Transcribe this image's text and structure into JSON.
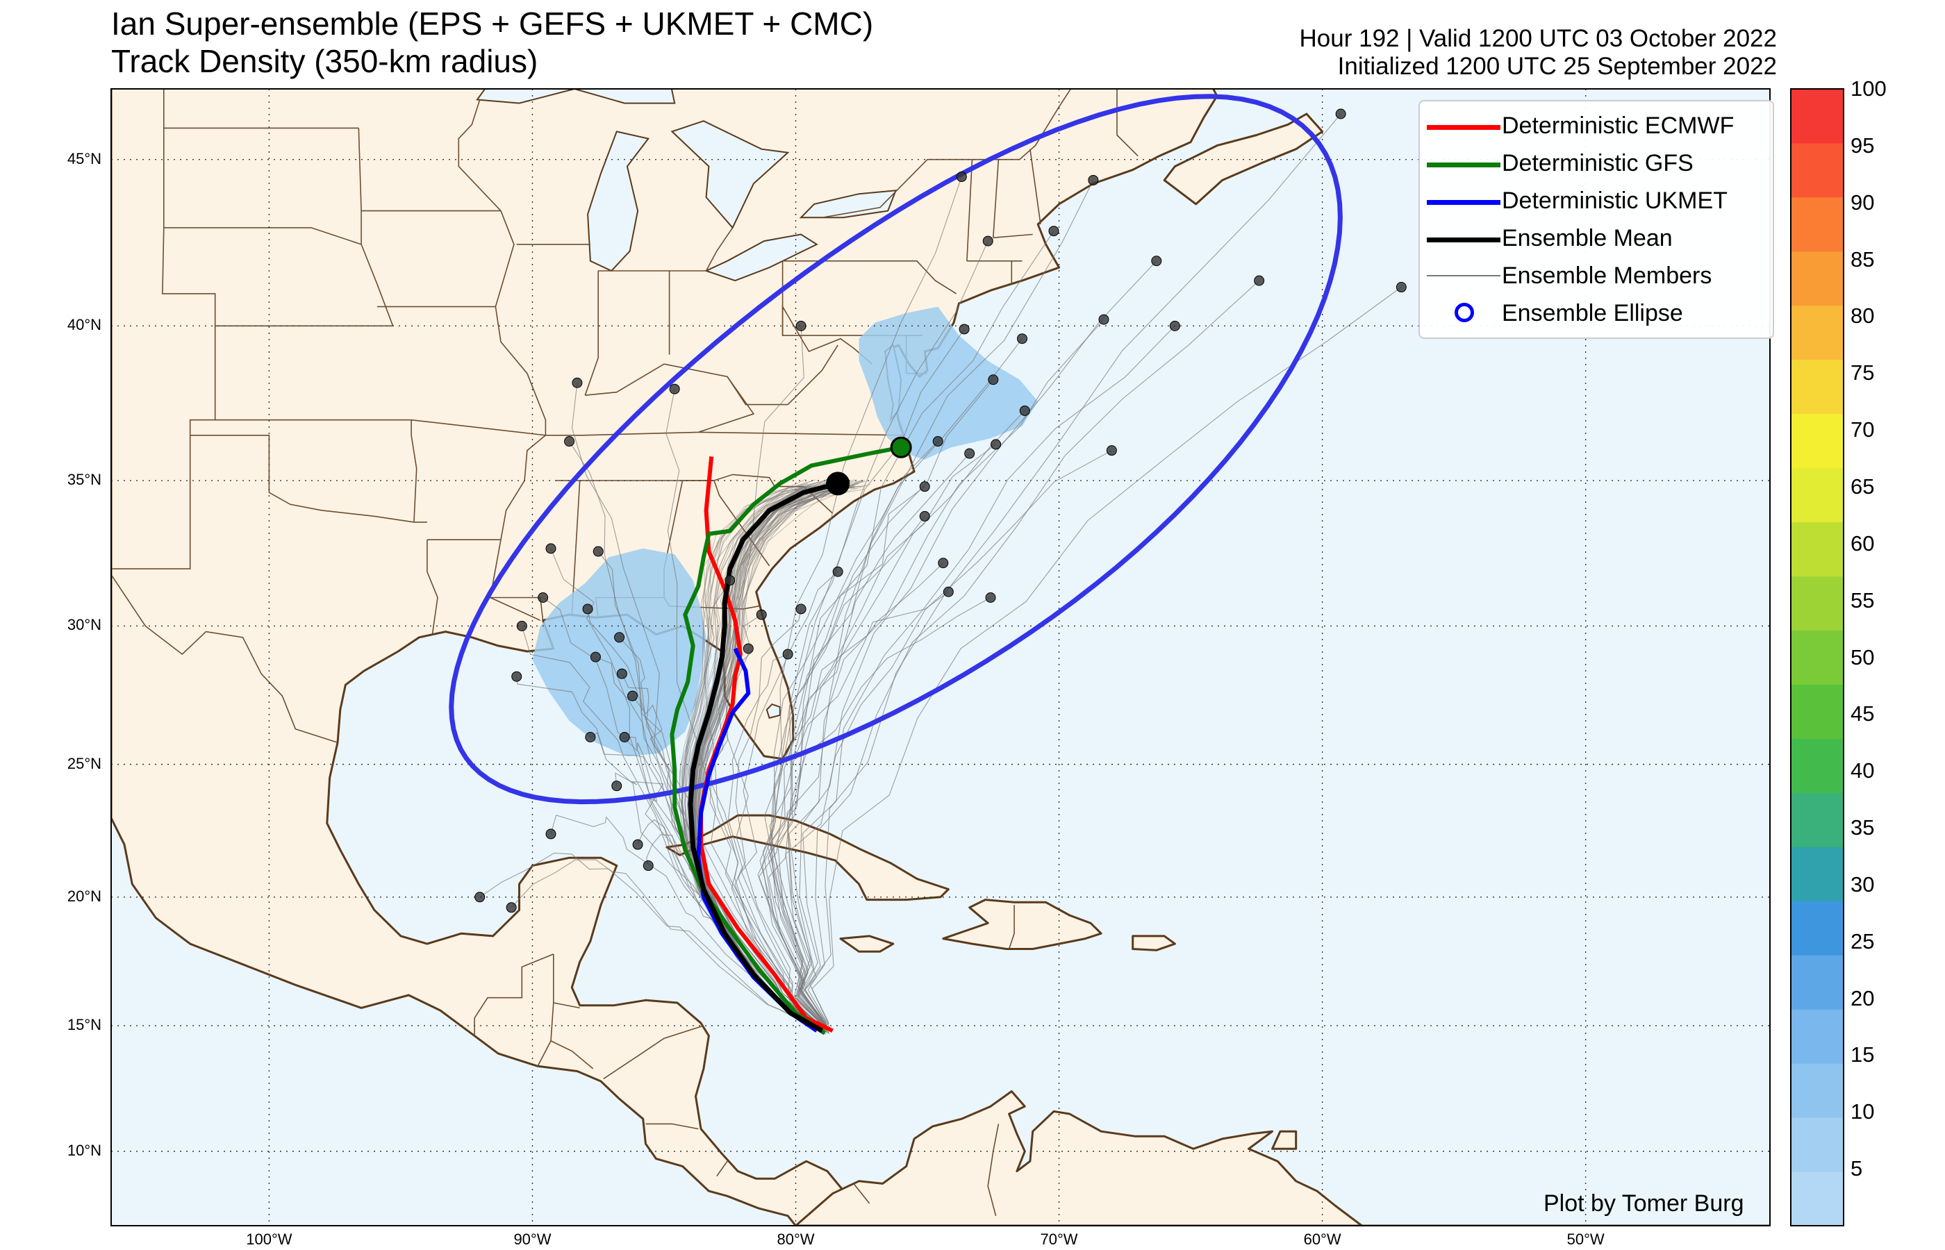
{
  "title_line1": "Ian Super-ensemble (EPS + GEFS + UKMET + CMC)",
  "title_line2": "Track Density (350-km radius)",
  "subtitle_line1": "Hour 192 | Valid 1200 UTC 03 October 2022",
  "subtitle_line2": "Initialized 1200 UTC 25 September 2022",
  "credit": "Plot by Tomer Burg",
  "colors": {
    "ocean": "#eaf6fc",
    "land": "#fdf3e4",
    "coast": "#5b3a1c",
    "border": "#6b4d30",
    "ecmwf": "#ff0000",
    "gfs": "#0a7d0a",
    "ukmet": "#0000ff",
    "mean": "#000000",
    "members": "#777777",
    "ellipse": "#3434e8",
    "density_fill": "#9cccf0"
  },
  "legend": [
    {
      "label": "Deterministic ECMWF",
      "color": "#ff0000",
      "style": "line-thick"
    },
    {
      "label": "Deterministic GFS",
      "color": "#0a7d0a",
      "style": "line-thick"
    },
    {
      "label": "Deterministic UKMET",
      "color": "#0000ff",
      "style": "line-thick"
    },
    {
      "label": "Ensemble Mean",
      "color": "#000000",
      "style": "line-thick"
    },
    {
      "label": "Ensemble Members",
      "color": "#777777",
      "style": "line-thin"
    },
    {
      "label": "Ensemble Ellipse",
      "color": "#0000ff",
      "style": "circle"
    }
  ],
  "axes": {
    "lat_labels": [
      "45°N",
      "40°N",
      "35°N",
      "30°N",
      "25°N",
      "20°N",
      "15°N",
      "10°N"
    ],
    "lat_values": [
      45,
      40,
      35,
      30,
      25,
      20,
      15,
      10
    ],
    "lon_labels": [
      "100°W",
      "90°W",
      "80°W",
      "70°W",
      "60°W",
      "50°W"
    ],
    "lon_values": [
      -100,
      -90,
      -80,
      -70,
      -60,
      -50
    ],
    "lon_range": [
      -106,
      -43
    ],
    "lat_range": [
      7,
      47
    ],
    "grid": "dotted"
  },
  "colorbar": {
    "ticks": [
      "100",
      "95",
      "90",
      "85",
      "80",
      "75",
      "70",
      "65",
      "60",
      "55",
      "50",
      "45",
      "40",
      "35",
      "30",
      "25",
      "20",
      "15",
      "10",
      "5"
    ],
    "min": 5,
    "max": 100,
    "step": 5,
    "colors": [
      "#b3d8f5",
      "#a2cff2",
      "#8fc4ef",
      "#79b7ec",
      "#5ea7e6",
      "#3d96de",
      "#2fa2ad",
      "#3ab07a",
      "#43bb4c",
      "#59c23a",
      "#7acb37",
      "#9dd335",
      "#bfde33",
      "#e1ec33",
      "#f5ef32",
      "#f7d638",
      "#f8ba38",
      "#f99c35",
      "#fa7d33",
      "#f95633",
      "#f43834"
    ]
  },
  "tracks": {
    "ecmwf": [
      [
        -78.6,
        14.8
      ],
      [
        -79.6,
        15.3
      ],
      [
        -80.8,
        17.0
      ],
      [
        -82.2,
        18.8
      ],
      [
        -83.3,
        20.5
      ],
      [
        -83.6,
        22.0
      ],
      [
        -83.6,
        23.3
      ],
      [
        -83.3,
        24.8
      ],
      [
        -82.8,
        26.1
      ],
      [
        -82.4,
        27.2
      ],
      [
        -82.3,
        28.2
      ],
      [
        -82.1,
        29.0
      ],
      [
        -82.3,
        30.2
      ],
      [
        -82.7,
        31.3
      ],
      [
        -83.3,
        32.6
      ],
      [
        -83.4,
        34.0
      ],
      [
        -83.2,
        35.8
      ]
    ],
    "gfs": [
      [
        -78.9,
        14.7
      ],
      [
        -80.0,
        15.5
      ],
      [
        -81.4,
        17.2
      ],
      [
        -82.6,
        18.9
      ],
      [
        -83.6,
        20.4
      ],
      [
        -84.2,
        21.8
      ],
      [
        -84.6,
        23.4
      ],
      [
        -84.6,
        24.8
      ],
      [
        -84.7,
        26.1
      ],
      [
        -84.5,
        27.0
      ],
      [
        -84.1,
        28.0
      ],
      [
        -83.9,
        29.3
      ],
      [
        -84.2,
        30.4
      ],
      [
        -83.7,
        31.4
      ],
      [
        -83.5,
        32.4
      ],
      [
        -83.3,
        33.2
      ],
      [
        -82.5,
        33.3
      ],
      [
        -81.6,
        34.2
      ],
      [
        -80.6,
        34.9
      ],
      [
        -79.4,
        35.5
      ],
      [
        -77.2,
        35.9
      ],
      [
        -76.0,
        36.1
      ]
    ],
    "ukmet": [
      [
        -79.2,
        14.8
      ],
      [
        -80.2,
        15.5
      ],
      [
        -81.6,
        16.9
      ],
      [
        -82.8,
        18.6
      ],
      [
        -83.5,
        20.0
      ],
      [
        -83.7,
        21.5
      ],
      [
        -83.6,
        23.2
      ],
      [
        -83.3,
        24.6
      ],
      [
        -82.9,
        25.7
      ],
      [
        -82.4,
        26.9
      ],
      [
        -81.8,
        27.6
      ],
      [
        -81.9,
        28.4
      ],
      [
        -82.3,
        29.2
      ]
    ],
    "mean": [
      [
        -79.0,
        14.8
      ],
      [
        -80.2,
        15.5
      ],
      [
        -81.6,
        17.0
      ],
      [
        -82.7,
        18.6
      ],
      [
        -83.5,
        20.3
      ],
      [
        -83.9,
        21.9
      ],
      [
        -84.0,
        23.5
      ],
      [
        -83.9,
        24.8
      ],
      [
        -83.7,
        25.7
      ],
      [
        -83.3,
        26.9
      ],
      [
        -83.0,
        28.0
      ],
      [
        -82.8,
        28.9
      ],
      [
        -82.7,
        30.0
      ],
      [
        -82.7,
        30.8
      ],
      [
        -82.5,
        32.0
      ],
      [
        -82.0,
        33.0
      ],
      [
        -81.0,
        34.0
      ],
      [
        -79.7,
        34.6
      ],
      [
        -78.4,
        34.9
      ]
    ],
    "ellipse": {
      "center": [
        -76.2,
        35.2
      ],
      "semi_major_km": 1850,
      "semi_minor_km": 760,
      "angle_deg": 38
    }
  },
  "endpoints": [
    [
      -73.7,
      44.5
    ],
    [
      -72.7,
      42.6
    ],
    [
      -68.7,
      44.4
    ],
    [
      -70.2,
      42.9
    ],
    [
      -66.3,
      42.0
    ],
    [
      -62.4,
      41.4
    ],
    [
      -59.3,
      46.3
    ],
    [
      -57.0,
      41.2
    ],
    [
      -65.6,
      40.0
    ],
    [
      -68.3,
      40.2
    ],
    [
      -71.4,
      39.6
    ],
    [
      -73.6,
      39.9
    ],
    [
      -72.5,
      38.3
    ],
    [
      -71.3,
      37.3
    ],
    [
      -68.0,
      36.0
    ],
    [
      -72.4,
      36.2
    ],
    [
      -74.6,
      36.3
    ],
    [
      -73.4,
      35.9
    ],
    [
      -75.1,
      34.8
    ],
    [
      -75.1,
      33.8
    ],
    [
      -74.4,
      32.2
    ],
    [
      -72.6,
      31.0
    ],
    [
      -74.2,
      31.2
    ],
    [
      -79.8,
      40.0
    ],
    [
      -84.6,
      38.0
    ],
    [
      -88.3,
      38.2
    ],
    [
      -88.6,
      36.3
    ],
    [
      -89.3,
      32.7
    ],
    [
      -87.5,
      32.6
    ],
    [
      -89.6,
      31.0
    ],
    [
      -90.4,
      30.0
    ],
    [
      -90.6,
      28.2
    ],
    [
      -87.9,
      30.6
    ],
    [
      -87.6,
      28.9
    ],
    [
      -86.7,
      29.6
    ],
    [
      -86.6,
      28.3
    ],
    [
      -86.2,
      27.5
    ],
    [
      -86.5,
      26.0
    ],
    [
      -87.8,
      26.0
    ],
    [
      -86.8,
      24.2
    ],
    [
      -86.0,
      22.0
    ],
    [
      -85.6,
      21.2
    ],
    [
      -89.3,
      22.4
    ],
    [
      -92.0,
      20.0
    ],
    [
      -90.8,
      19.6
    ],
    [
      -81.3,
      30.4
    ],
    [
      -79.8,
      30.6
    ],
    [
      -80.3,
      29.0
    ],
    [
      -78.4,
      31.9
    ],
    [
      -82.5,
      31.6
    ],
    [
      -81.8,
      29.2
    ]
  ]
}
